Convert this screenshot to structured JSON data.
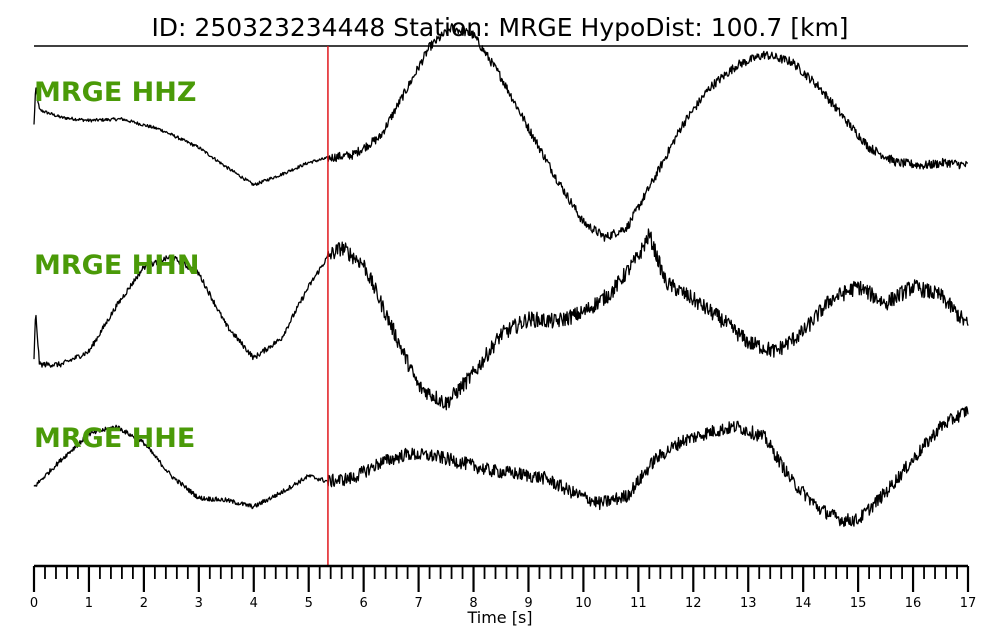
{
  "title": "ID: 250323234448   Station: MRGE   HypoDist:   100.7 [km]",
  "colors": {
    "trace": "#000000",
    "pick": "#e0181c",
    "label": "#4a9a08"
  },
  "chart_data": {
    "type": "line",
    "xlabel": "Time [s]",
    "ylabel": "",
    "xlim": [
      0,
      17
    ],
    "x_ticks_major": [
      0,
      1,
      2,
      3,
      4,
      5,
      6,
      7,
      8,
      9,
      10,
      11,
      12,
      13,
      14,
      15,
      16,
      17
    ],
    "x_ticks_minor_step": 0.2,
    "pick_time": 5.35,
    "noise_amplitude": {
      "HHZ": 0.03,
      "HHN": 0.06,
      "HHE": 0.06
    },
    "series": [
      {
        "name": "MRGE HHZ",
        "x": [
          0,
          0.03,
          0.1,
          0.5,
          1,
          1.6,
          2.3,
          3.0,
          3.5,
          4.0,
          4.5,
          5.0,
          5.35,
          5.8,
          6.3,
          6.8,
          7.2,
          7.6,
          8.0,
          8.5,
          9.0,
          9.5,
          10.0,
          10.4,
          10.8,
          11.3,
          11.8,
          12.3,
          12.8,
          13.3,
          13.8,
          14.3,
          14.8,
          15.2,
          15.7,
          16.2,
          16.6,
          17.0
        ],
        "y": [
          0.3,
          0.55,
          0.4,
          0.35,
          0.33,
          0.34,
          0.27,
          0.15,
          0.02,
          -0.1,
          -0.03,
          0.05,
          0.08,
          0.1,
          0.22,
          0.55,
          0.82,
          0.95,
          0.9,
          0.62,
          0.28,
          -0.05,
          -0.35,
          -0.45,
          -0.38,
          -0.05,
          0.3,
          0.55,
          0.7,
          0.77,
          0.72,
          0.55,
          0.32,
          0.15,
          0.05,
          0.03,
          0.05,
          0.03
        ]
      },
      {
        "name": "MRGE HHN",
        "x": [
          0,
          0.03,
          0.1,
          0.5,
          1.0,
          1.5,
          2.0,
          2.5,
          3.0,
          3.5,
          4.0,
          4.5,
          5.0,
          5.35,
          5.6,
          6.0,
          6.5,
          7.0,
          7.5,
          8.0,
          8.5,
          9.0,
          9.5,
          10.0,
          10.5,
          11.0,
          11.2,
          11.5,
          12.0,
          12.5,
          13.0,
          13.5,
          14.0,
          14.5,
          15.0,
          15.5,
          16.0,
          16.5,
          17.0
        ],
        "y": [
          0.0,
          0.35,
          -0.05,
          -0.05,
          0.05,
          0.4,
          0.7,
          0.78,
          0.65,
          0.25,
          0.0,
          0.15,
          0.55,
          0.78,
          0.85,
          0.72,
          0.25,
          -0.22,
          -0.35,
          -0.12,
          0.18,
          0.3,
          0.28,
          0.35,
          0.5,
          0.78,
          0.95,
          0.58,
          0.45,
          0.3,
          0.12,
          0.05,
          0.2,
          0.45,
          0.55,
          0.42,
          0.55,
          0.48,
          0.25
        ]
      },
      {
        "name": "MRGE HHE",
        "x": [
          0,
          0.5,
          1.0,
          1.5,
          2.0,
          2.5,
          3.0,
          3.5,
          4.0,
          4.5,
          5.0,
          5.35,
          5.8,
          6.3,
          6.8,
          7.3,
          7.8,
          8.3,
          8.8,
          9.3,
          9.8,
          10.3,
          10.8,
          11.3,
          11.8,
          12.3,
          12.8,
          13.3,
          13.8,
          14.3,
          14.7,
          15.0,
          15.5,
          16.0,
          16.5,
          17.0
        ],
        "y": [
          0.3,
          0.55,
          0.78,
          0.85,
          0.7,
          0.4,
          0.2,
          0.18,
          0.12,
          0.25,
          0.4,
          0.35,
          0.38,
          0.52,
          0.6,
          0.58,
          0.52,
          0.45,
          0.42,
          0.38,
          0.25,
          0.15,
          0.22,
          0.55,
          0.72,
          0.8,
          0.85,
          0.75,
          0.35,
          0.1,
          0.0,
          0.0,
          0.25,
          0.55,
          0.85,
          1.0
        ]
      }
    ]
  }
}
